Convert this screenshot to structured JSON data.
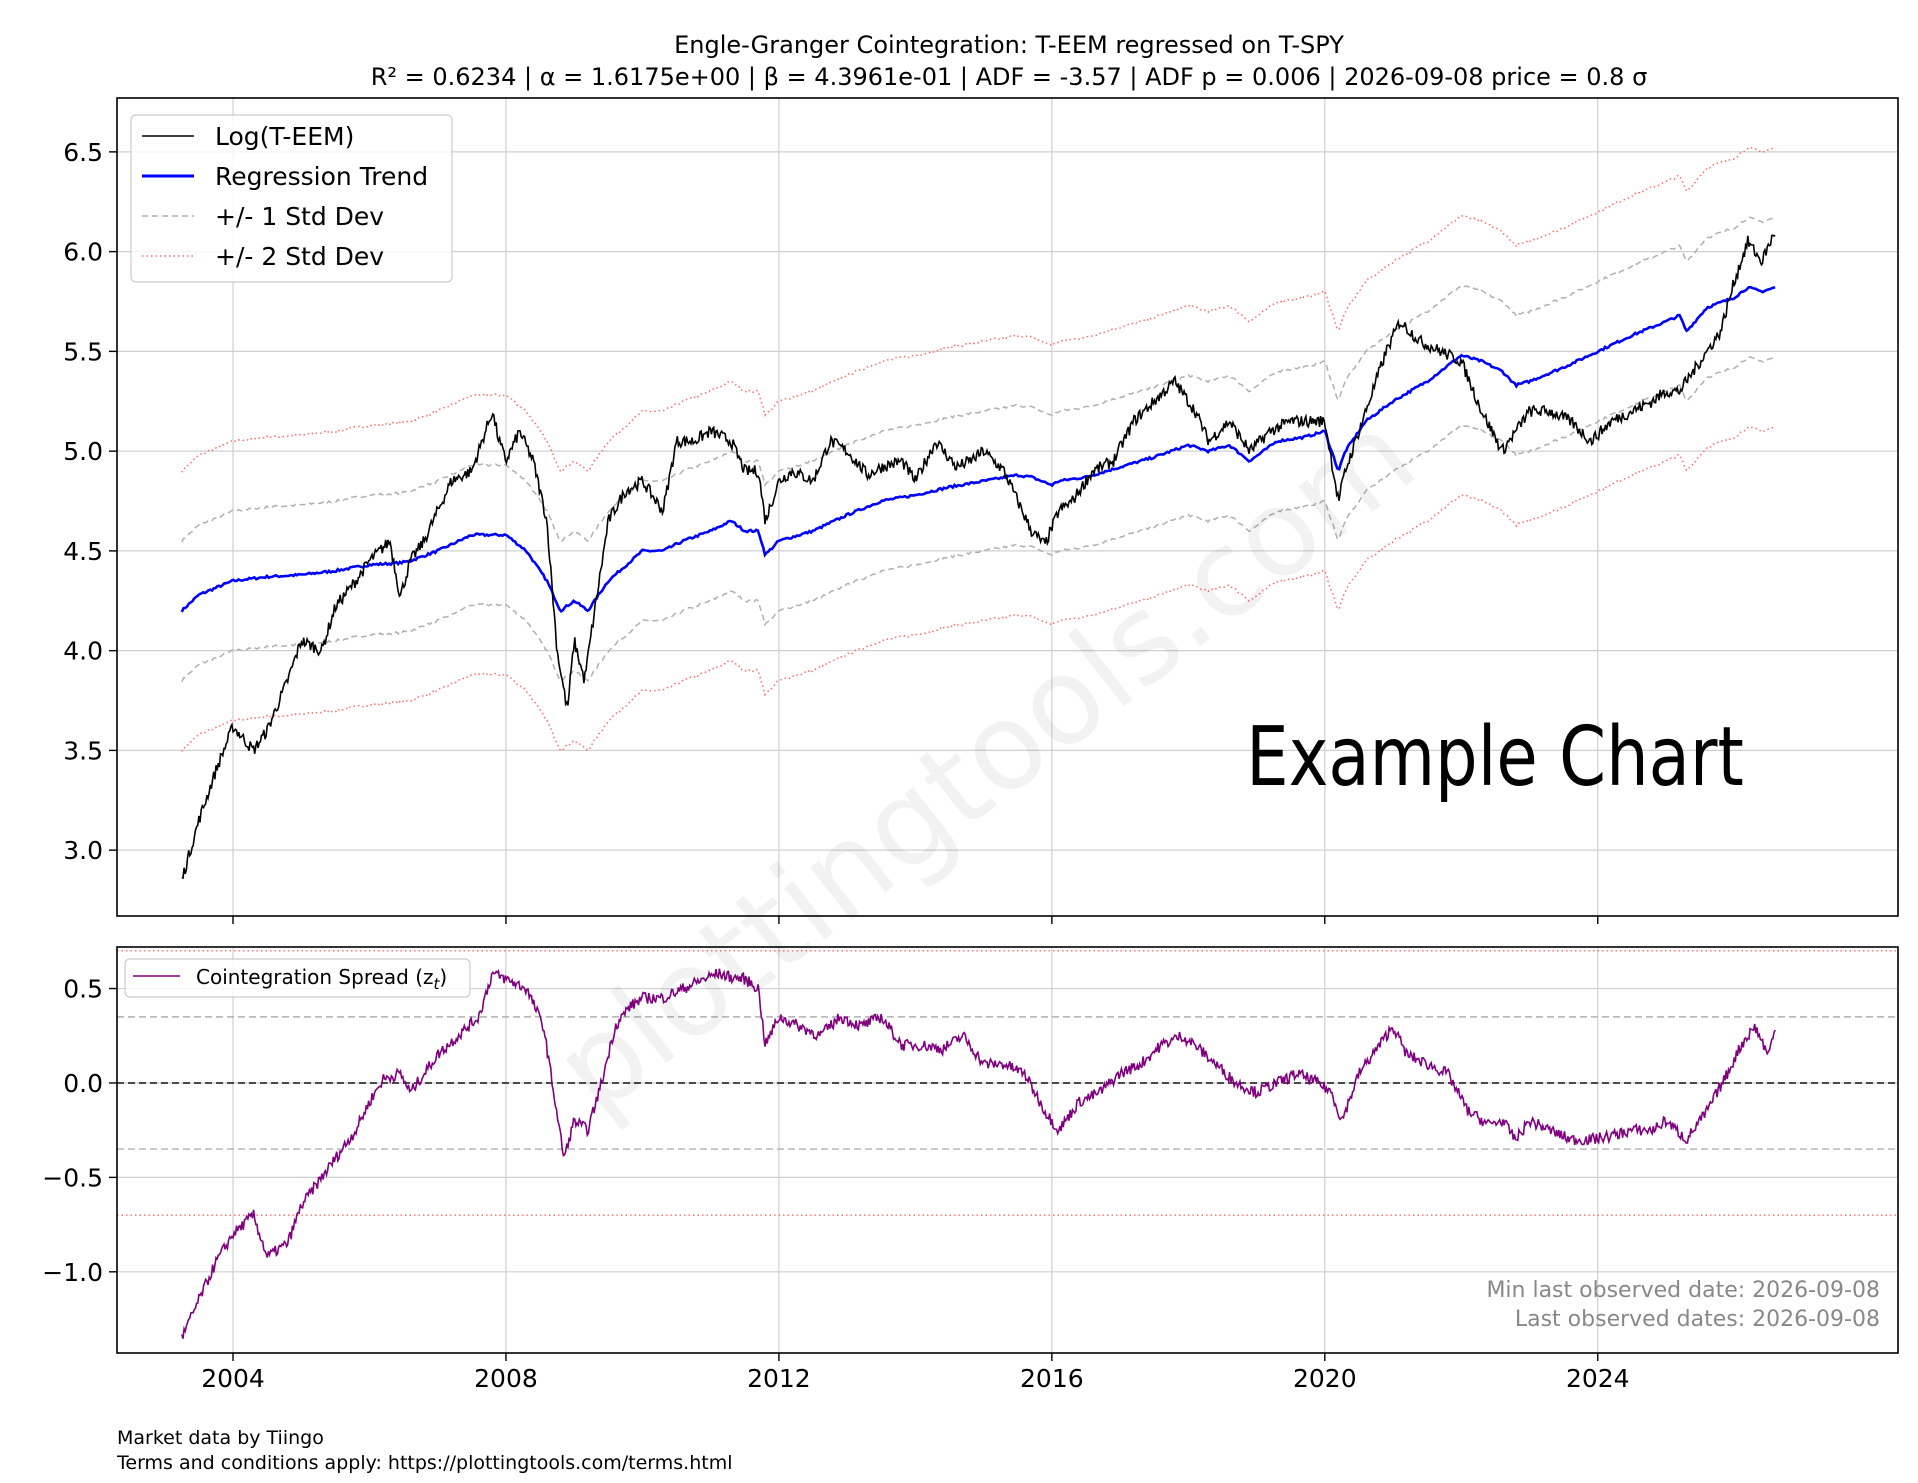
{
  "title": {
    "line1": "Engle-Granger Cointegration: T-EEM regressed on T-SPY",
    "line2": "R² = 0.6234 | α = 1.6175e+00 | β = 4.3961e-01 | ADF = -3.57 | ADF p = 0.006 | 2026-09-08 price = 0.8 σ"
  },
  "watermark": "plottingtools.com",
  "overlay_label": "Example Chart",
  "footer": {
    "line1": "Market data by Tiingo",
    "line2": "Terms and conditions apply: https://plottingtools.com/terms.html"
  },
  "colors": {
    "price": "#000000",
    "trend": "#0000ff",
    "band1": "#b0b0b0",
    "band2": "#ff6b6b",
    "spread": "#800080",
    "grid": "#d0d0d0"
  },
  "chart_data": [
    {
      "type": "line",
      "panel": "top",
      "xlim": [
        2002.3,
        2028.4
      ],
      "ylim": [
        2.67,
        6.77
      ],
      "x_ticks": [
        2004,
        2008,
        2012,
        2016,
        2020,
        2024
      ],
      "y_ticks": [
        3.0,
        3.5,
        4.0,
        4.5,
        5.0,
        5.5,
        6.0,
        6.5
      ],
      "y_tick_labels": [
        "3.0",
        "3.5",
        "4.0",
        "4.5",
        "5.0",
        "5.5",
        "6.0",
        "6.5"
      ],
      "grid": true,
      "legend_position": "top-left",
      "legend": [
        {
          "label": "Log(T-EEM)",
          "style": "solid-thin",
          "color": "#000000"
        },
        {
          "label": "Regression Trend",
          "style": "solid-thick",
          "color": "#0000ff"
        },
        {
          "label": "+/- 1 Std Dev",
          "style": "dashed",
          "color": "#b0b0b0"
        },
        {
          "label": "+/- 2 Std Dev",
          "style": "dotted",
          "color": "#ff6b6b"
        }
      ],
      "band_offsets": {
        "one_std": 0.35,
        "two_std": 0.7
      },
      "series": [
        {
          "name": "Log(T-EEM)",
          "x": [
            2003.25,
            2003.5,
            2003.75,
            2004.0,
            2004.3,
            2004.5,
            2004.8,
            2005.0,
            2005.3,
            2005.5,
            2005.8,
            2006.0,
            2006.3,
            2006.45,
            2006.6,
            2006.8,
            2007.0,
            2007.2,
            2007.5,
            2007.8,
            2007.9,
            2008.0,
            2008.2,
            2008.4,
            2008.6,
            2008.75,
            2008.9,
            2009.0,
            2009.15,
            2009.3,
            2009.5,
            2009.75,
            2010.0,
            2010.3,
            2010.5,
            2010.75,
            2011.0,
            2011.3,
            2011.5,
            2011.7,
            2011.8,
            2012.0,
            2012.2,
            2012.5,
            2012.75,
            2013.0,
            2013.3,
            2013.5,
            2013.8,
            2014.0,
            2014.3,
            2014.6,
            2014.8,
            2015.0,
            2015.3,
            2015.5,
            2015.7,
            2015.9,
            2016.1,
            2016.3,
            2016.6,
            2016.9,
            2017.2,
            2017.5,
            2017.8,
            2018.1,
            2018.3,
            2018.6,
            2018.9,
            2019.2,
            2019.5,
            2019.8,
            2020.0,
            2020.2,
            2020.3,
            2020.6,
            2020.9,
            2021.1,
            2021.4,
            2021.7,
            2022.0,
            2022.3,
            2022.6,
            2022.8,
            2023.0,
            2023.3,
            2023.6,
            2023.9,
            2024.2,
            2024.5,
            2024.8,
            2025.0,
            2025.2,
            2025.5,
            2025.8,
            2026.0,
            2026.2,
            2026.4,
            2026.6
          ],
          "values": [
            2.85,
            3.15,
            3.4,
            3.62,
            3.5,
            3.6,
            3.85,
            4.05,
            4.0,
            4.22,
            4.35,
            4.45,
            4.55,
            4.27,
            4.45,
            4.55,
            4.7,
            4.85,
            4.9,
            5.2,
            5.05,
            4.95,
            5.1,
            4.95,
            4.65,
            4.0,
            3.7,
            4.05,
            3.85,
            4.2,
            4.65,
            4.8,
            4.85,
            4.7,
            5.05,
            5.05,
            5.1,
            5.05,
            4.9,
            4.9,
            4.65,
            4.85,
            4.9,
            4.85,
            5.05,
            5.0,
            4.88,
            4.92,
            4.95,
            4.85,
            5.05,
            4.92,
            4.95,
            5.0,
            4.9,
            4.75,
            4.6,
            4.53,
            4.7,
            4.75,
            4.9,
            4.95,
            5.15,
            5.25,
            5.35,
            5.2,
            5.05,
            5.15,
            5.0,
            5.1,
            5.15,
            5.15,
            5.15,
            4.75,
            4.9,
            5.2,
            5.5,
            5.65,
            5.55,
            5.5,
            5.45,
            5.2,
            5.0,
            5.1,
            5.2,
            5.2,
            5.15,
            5.05,
            5.15,
            5.2,
            5.25,
            5.3,
            5.3,
            5.45,
            5.6,
            5.85,
            6.05,
            5.95,
            6.1
          ]
        },
        {
          "name": "Regression Trend",
          "x": [
            2003.25,
            2003.5,
            2004.0,
            2004.5,
            2005.0,
            2005.5,
            2006.0,
            2006.45,
            2006.6,
            2007.0,
            2007.5,
            2008.0,
            2008.3,
            2008.6,
            2008.8,
            2009.0,
            2009.2,
            2009.5,
            2010.0,
            2010.3,
            2010.6,
            2011.0,
            2011.3,
            2011.5,
            2011.7,
            2011.8,
            2012.0,
            2012.5,
            2013.0,
            2013.5,
            2014.0,
            2014.5,
            2015.0,
            2015.5,
            2015.7,
            2016.0,
            2016.1,
            2016.5,
            2017.0,
            2017.5,
            2018.0,
            2018.3,
            2018.6,
            2018.9,
            2019.3,
            2019.7,
            2020.0,
            2020.2,
            2020.3,
            2020.6,
            2021.0,
            2021.5,
            2022.0,
            2022.3,
            2022.6,
            2022.8,
            2023.0,
            2023.5,
            2024.0,
            2024.5,
            2025.0,
            2025.2,
            2025.3,
            2025.6,
            2026.0,
            2026.2,
            2026.4,
            2026.6
          ],
          "values": [
            4.2,
            4.28,
            4.35,
            4.37,
            4.38,
            4.4,
            4.43,
            4.44,
            4.45,
            4.5,
            4.58,
            4.58,
            4.5,
            4.35,
            4.2,
            4.25,
            4.2,
            4.35,
            4.5,
            4.5,
            4.55,
            4.6,
            4.65,
            4.6,
            4.6,
            4.48,
            4.55,
            4.6,
            4.68,
            4.75,
            4.78,
            4.82,
            4.85,
            4.88,
            4.87,
            4.83,
            4.85,
            4.87,
            4.92,
            4.97,
            5.03,
            5.0,
            5.03,
            4.95,
            5.05,
            5.07,
            5.1,
            4.9,
            5.0,
            5.15,
            5.25,
            5.35,
            5.48,
            5.45,
            5.4,
            5.33,
            5.35,
            5.42,
            5.5,
            5.58,
            5.65,
            5.68,
            5.6,
            5.72,
            5.77,
            5.82,
            5.8,
            5.82
          ]
        }
      ]
    },
    {
      "type": "line",
      "panel": "bottom",
      "xlim": [
        2002.3,
        2028.4
      ],
      "ylim": [
        -1.43,
        0.72
      ],
      "x_ticks": [
        2004,
        2008,
        2012,
        2016,
        2020,
        2024
      ],
      "x_tick_labels": [
        "2004",
        "2008",
        "2012",
        "2016",
        "2020",
        "2024"
      ],
      "y_ticks": [
        -1.0,
        -0.5,
        0.0,
        0.5
      ],
      "y_tick_labels": [
        "−1.0",
        "−0.5",
        "0.0",
        "0.5"
      ],
      "grid": true,
      "legend_position": "top-left",
      "legend": [
        {
          "label": "Cointegration Spread (z",
          "sub": "t",
          "suffix": ")",
          "color": "#800080"
        }
      ],
      "reference_lines": [
        {
          "y": 0.0,
          "style": "dashed",
          "color": "#333333"
        },
        {
          "y": 0.35,
          "style": "dashed",
          "color": "#b0b0b0"
        },
        {
          "y": -0.35,
          "style": "dashed",
          "color": "#b0b0b0"
        },
        {
          "y": 0.7,
          "style": "dotted",
          "color": "#ff6b6b"
        },
        {
          "y": -0.7,
          "style": "dotted",
          "color": "#ff6b6b"
        }
      ],
      "annotations": [
        "Min last observed date: 2026-09-08",
        "Last observed dates: 2026-09-08"
      ],
      "series": [
        {
          "name": "Cointegration Spread",
          "x": [
            2003.25,
            2003.5,
            2003.75,
            2004.0,
            2004.3,
            2004.5,
            2004.8,
            2005.0,
            2005.3,
            2005.5,
            2005.8,
            2006.0,
            2006.2,
            2006.45,
            2006.6,
            2006.8,
            2007.0,
            2007.3,
            2007.6,
            2007.8,
            2008.0,
            2008.3,
            2008.55,
            2008.7,
            2008.85,
            2009.0,
            2009.2,
            2009.4,
            2009.6,
            2009.8,
            2010.0,
            2010.3,
            2010.6,
            2010.9,
            2011.1,
            2011.3,
            2011.5,
            2011.7,
            2011.8,
            2012.0,
            2012.3,
            2012.6,
            2012.9,
            2013.2,
            2013.5,
            2013.8,
            2014.1,
            2014.4,
            2014.7,
            2015.0,
            2015.3,
            2015.6,
            2015.9,
            2016.1,
            2016.4,
            2016.7,
            2017.0,
            2017.3,
            2017.6,
            2017.9,
            2018.1,
            2018.4,
            2018.7,
            2019.0,
            2019.3,
            2019.6,
            2019.9,
            2020.1,
            2020.25,
            2020.5,
            2020.8,
            2021.0,
            2021.2,
            2021.5,
            2021.8,
            2022.1,
            2022.4,
            2022.6,
            2022.8,
            2023.0,
            2023.3,
            2023.6,
            2023.9,
            2024.2,
            2024.5,
            2024.8,
            2025.0,
            2025.3,
            2025.6,
            2025.9,
            2026.1,
            2026.3,
            2026.5,
            2026.6
          ],
          "values": [
            -1.35,
            -1.15,
            -0.95,
            -0.8,
            -0.7,
            -0.92,
            -0.85,
            -0.65,
            -0.5,
            -0.4,
            -0.25,
            -0.1,
            0.02,
            0.05,
            -0.05,
            0.05,
            0.15,
            0.25,
            0.35,
            0.58,
            0.55,
            0.5,
            0.3,
            -0.05,
            -0.4,
            -0.2,
            -0.25,
            0.0,
            0.3,
            0.4,
            0.45,
            0.45,
            0.5,
            0.55,
            0.58,
            0.56,
            0.55,
            0.5,
            0.2,
            0.35,
            0.3,
            0.25,
            0.35,
            0.3,
            0.35,
            0.2,
            0.2,
            0.18,
            0.25,
            0.1,
            0.1,
            0.05,
            -0.15,
            -0.25,
            -0.1,
            -0.05,
            0.05,
            0.1,
            0.2,
            0.25,
            0.2,
            0.1,
            0.0,
            -0.05,
            0.0,
            0.05,
            0.0,
            -0.05,
            -0.2,
            0.05,
            0.2,
            0.3,
            0.15,
            0.1,
            0.05,
            -0.15,
            -0.22,
            -0.2,
            -0.3,
            -0.2,
            -0.25,
            -0.3,
            -0.3,
            -0.28,
            -0.25,
            -0.25,
            -0.2,
            -0.3,
            -0.15,
            0.05,
            0.2,
            0.3,
            0.15,
            0.28
          ]
        }
      ]
    }
  ]
}
